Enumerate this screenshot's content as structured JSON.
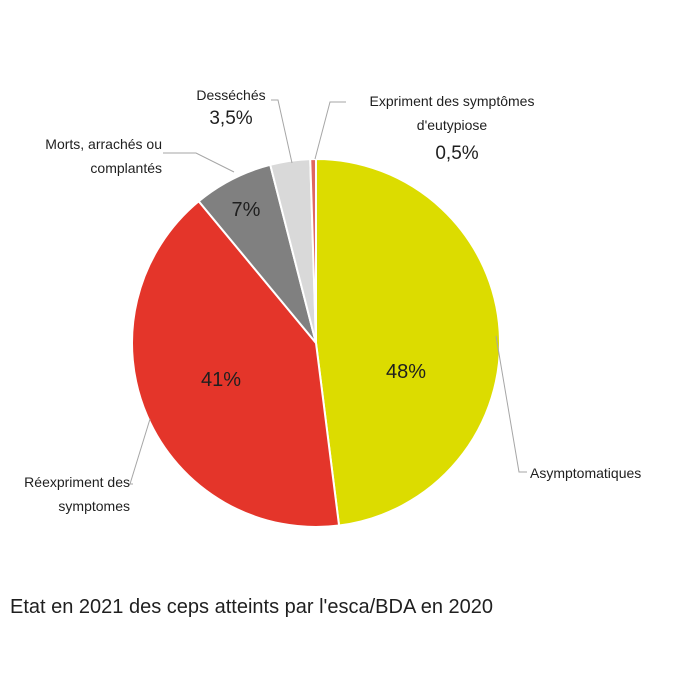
{
  "caption": "Etat en 2021 des ceps atteints par l'esca/BDA en 2020",
  "chart_data": {
    "type": "pie",
    "title": "",
    "start_angle_deg": 0,
    "direction": "clockwise",
    "slices": [
      {
        "id": "asymptomatiques",
        "label": [
          "Asymptomatiques"
        ],
        "value": 48,
        "value_label": "48%",
        "color": "#dcdc00",
        "label_placement": "outside",
        "value_placement": "inside"
      },
      {
        "id": "reexpriment",
        "label": [
          "Réexpriment des",
          "symptomes"
        ],
        "value": 41,
        "value_label": "41%",
        "color": "#e4352a",
        "label_placement": "outside",
        "value_placement": "inside"
      },
      {
        "id": "morts",
        "label": [
          "Morts, arrachés ou",
          "complantés"
        ],
        "value": 7,
        "value_label": "7%",
        "color": "#808080",
        "label_placement": "outside",
        "value_placement": "inside"
      },
      {
        "id": "desseches",
        "label": [
          "Desséchés"
        ],
        "value": 3.5,
        "value_label": "3,5%",
        "color": "#d9d9d9",
        "label_placement": "outside",
        "value_placement": "outside"
      },
      {
        "id": "eutypiose",
        "label": [
          "Expriment des symptômes",
          "d'eutypiose"
        ],
        "value": 0.5,
        "value_label": "0,5%",
        "color": "#e06660",
        "label_placement": "outside",
        "value_placement": "outside"
      }
    ]
  }
}
